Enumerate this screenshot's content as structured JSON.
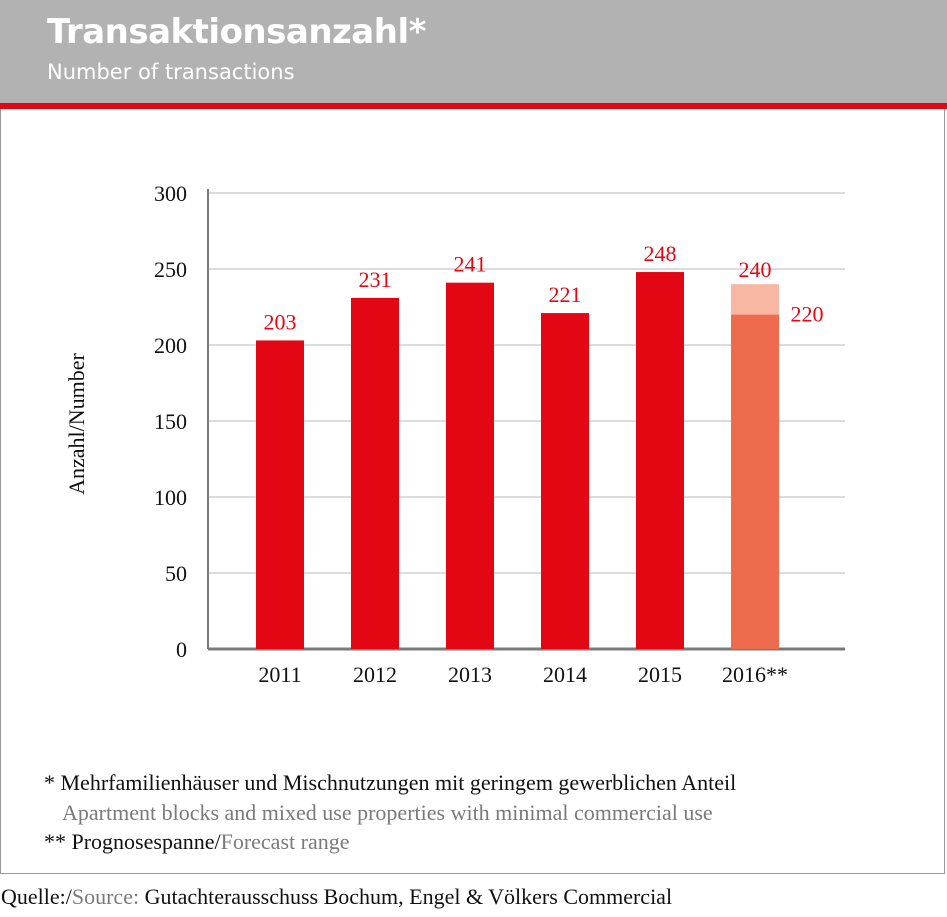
{
  "header": {
    "title": "Transaktionsanzahl*",
    "subtitle": "Number of transactions"
  },
  "colors": {
    "bar": "#e30613",
    "forecast_low": "#ee6c4d",
    "forecast_range": "#f7b7a3",
    "label": "#e30613",
    "grid": "#dcdcdc",
    "axis": "#7a7a7a"
  },
  "chart_data": {
    "type": "bar",
    "title": "Transaktionsanzahl*",
    "subtitle": "Number of transactions",
    "xlabel": "",
    "ylabel": "Anzahl/Number",
    "ylim": [
      0,
      300
    ],
    "yticks": [
      "0",
      "50",
      "100",
      "150",
      "200",
      "250",
      "300"
    ],
    "ytick_values": [
      0,
      50,
      100,
      150,
      200,
      250,
      300
    ],
    "grid": true,
    "categories": [
      "2011",
      "2012",
      "2013",
      "2014",
      "2015",
      "2016**"
    ],
    "values": [
      203,
      231,
      241,
      221,
      248,
      220
    ],
    "value_labels": [
      "203",
      "231",
      "241",
      "221",
      "248",
      "220"
    ],
    "forecast": {
      "category": "2016**",
      "low": 220,
      "high": 240,
      "low_label": "220",
      "high_label": "240"
    }
  },
  "footnotes": {
    "note1": "* Mehrfamilienhäuser und Mischnutzungen mit geringem gewerblichen Anteil",
    "note1_en": "Apartment blocks and mixed use properties with minimal commercial use",
    "note2_prefix": "** Prognosespanne/",
    "note2_en": "Forecast range"
  },
  "source": {
    "label": "Quelle:/",
    "label_en": "Source:",
    "text": " Gutachterausschuss Bochum, Engel & Völkers Commercial"
  }
}
